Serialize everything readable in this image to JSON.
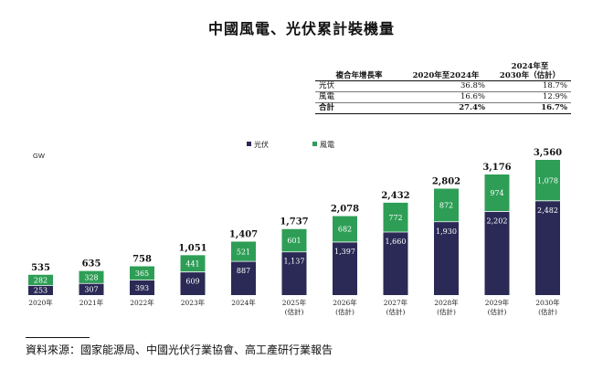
{
  "title": "中國風電、光伏累計裝機量",
  "cagr_table": {
    "headers": [
      "複合年增長率",
      "2020年至2024年",
      "2024年至",
      "2030年（估計）"
    ],
    "rows": [
      {
        "label": "光伏",
        "v1": "36.8%",
        "v2": "18.7%"
      },
      {
        "label": "風電",
        "v1": "16.6%",
        "v2": "12.9%"
      },
      {
        "label": "合計",
        "v1": "27.4%",
        "v2": "16.7%"
      }
    ]
  },
  "footer": "資料來源：國家能源局、中國光伏行業協會、高工產研行業報告",
  "colors": {
    "solar": "#2b2a56",
    "wind": "#2e9e56"
  },
  "chart_data": {
    "type": "bar",
    "stacked": true,
    "unit": "GW",
    "legend": [
      "光伏",
      "風電"
    ],
    "legend_position": "top-center",
    "categories": [
      "2020年",
      "2021年",
      "2022年",
      "2023年",
      "2024年",
      "2025年",
      "2026年",
      "2027年",
      "2028年",
      "2029年",
      "2030年"
    ],
    "category_sub": [
      "",
      "",
      "",
      "",
      "",
      "(估計)",
      "(估計)",
      "(估計)",
      "(估計)",
      "(估計)",
      "(估計)"
    ],
    "series": [
      {
        "name": "光伏",
        "values": [
          253,
          307,
          393,
          609,
          887,
          1137,
          1397,
          1660,
          1930,
          2202,
          2482
        ]
      },
      {
        "name": "風電",
        "values": [
          282,
          328,
          365,
          441,
          521,
          601,
          682,
          772,
          872,
          974,
          1078
        ]
      }
    ],
    "totals": [
      "535",
      "635",
      "758",
      "1,051",
      "1,407",
      "1,737",
      "2,078",
      "2,432",
      "2,802",
      "3,176",
      "3,560"
    ],
    "solar_labels": [
      "253",
      "307",
      "393",
      "609",
      "887",
      "1,137",
      "1,397",
      "1,660",
      "1,930",
      "2,202",
      "2,482"
    ],
    "wind_labels": [
      "282",
      "328",
      "365",
      "441",
      "521",
      "601",
      "682",
      "772",
      "872",
      "974",
      "1,078"
    ],
    "ylim": [
      0,
      3560
    ],
    "grid": false
  }
}
